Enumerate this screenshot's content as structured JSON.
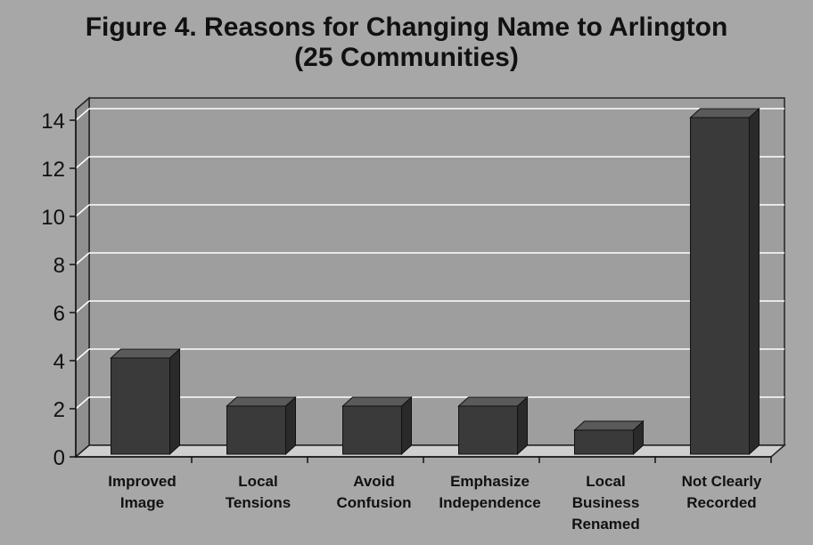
{
  "chart_data": {
    "type": "bar",
    "title": "Figure 4.  Reasons for Changing Name to Arlington",
    "subtitle": "(25 Communities)",
    "categories": [
      [
        "Improved",
        "Image"
      ],
      [
        "Local",
        "Tensions"
      ],
      [
        "Avoid",
        "Confusion"
      ],
      [
        "Emphasize",
        "Independence"
      ],
      [
        "Local",
        "Business",
        "Renamed"
      ],
      [
        "Not Clearly",
        "Recorded"
      ]
    ],
    "values": [
      4,
      2,
      2,
      2,
      1,
      14
    ],
    "ylim": [
      0,
      14
    ],
    "yticks": [
      "0",
      "2",
      "4",
      "6",
      "8",
      "10",
      "12",
      "14"
    ],
    "xlabel": "",
    "ylabel": "",
    "grid": true,
    "colors": {
      "bar_front": "#3a3a3a",
      "bar_top": "#5a5a5a",
      "bar_side": "#2a2a2a",
      "floor": "#cfcfcf",
      "grid": "#ffffff",
      "text": "#111111"
    }
  }
}
